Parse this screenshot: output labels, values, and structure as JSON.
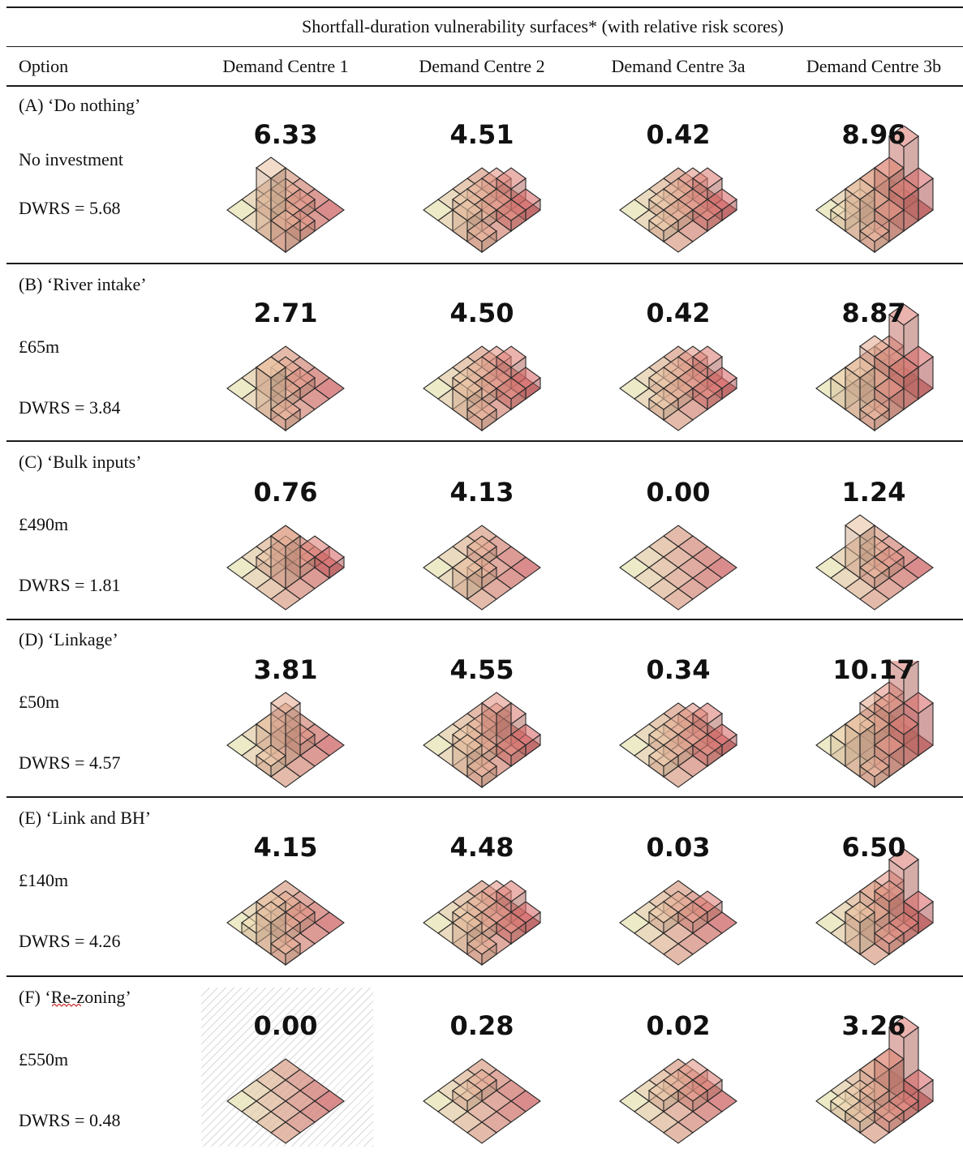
{
  "header": {
    "title": "Shortfall-duration vulnerability surfaces* (with relative risk scores)",
    "option_label": "Option",
    "columns": [
      "Demand Centre 1",
      "Demand Centre 2",
      "Demand Centre 3a",
      "Demand Centre 3b"
    ]
  },
  "rows": [
    {
      "name": "(A) ‘Do nothing’",
      "cost": "No investment",
      "dwrs": "DWRS = 5.68",
      "scores": [
        "6.33",
        "4.51",
        "0.42",
        "8.96"
      ]
    },
    {
      "name": "(B) ‘River intake’",
      "cost": "£65m",
      "dwrs": "DWRS = 3.84",
      "scores": [
        "2.71",
        "4.50",
        "0.42",
        "8.87"
      ]
    },
    {
      "name": "(C) ‘Bulk inputs’",
      "cost": "£490m",
      "dwrs": "DWRS = 1.81",
      "scores": [
        "0.76",
        "4.13",
        "0.00",
        "1.24"
      ]
    },
    {
      "name": "(D) ‘Linkage’",
      "cost": "£50m",
      "dwrs": "DWRS = 4.57",
      "scores": [
        "3.81",
        "4.55",
        "0.34",
        "10.17"
      ]
    },
    {
      "name": "(E) ‘Link and BH’",
      "cost": "£140m",
      "dwrs": "DWRS = 4.26",
      "scores": [
        "4.15",
        "4.48",
        "0.03",
        "6.50"
      ]
    },
    {
      "name": "(F) ‘Re-zoning’",
      "cost": "£550m",
      "dwrs": "DWRS = 0.48",
      "scores": [
        "0.00",
        "0.28",
        "0.02",
        "3.26"
      ]
    }
  ],
  "colors": {
    "low": "#f3efc0",
    "high": "#d96a6a",
    "edge": "#2a2a2a",
    "hatch": "#d9d9d9"
  }
}
